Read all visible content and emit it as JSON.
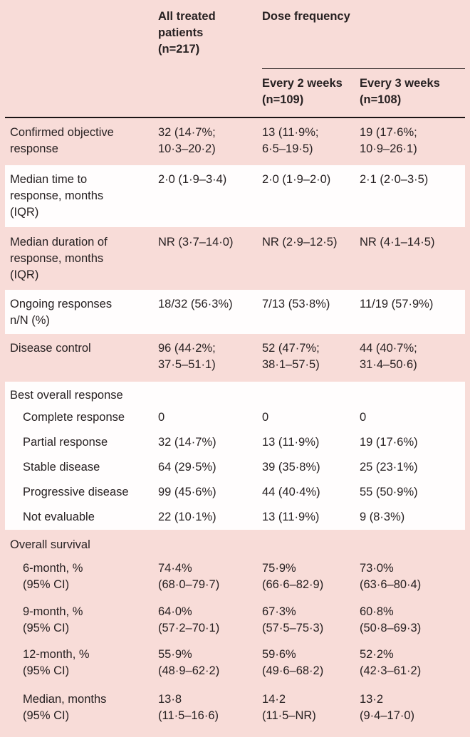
{
  "chart_data": {
    "type": "table",
    "header": {
      "all_treated": "All treated\npatients\n(n=217)",
      "dose_frequency_group": "Dose frequency",
      "every_2_weeks": "Every 2 weeks\n(n=109)",
      "every_3_weeks": "Every 3 weeks\n(n=108)"
    },
    "rows": [
      {
        "label": "Confirmed objective\nresponse",
        "values": [
          "32 (14·7%;\n10·3–20·2)",
          "13 (11·9%;\n6·5–19·5)",
          "19 (17·6%;\n10·9–26·1)"
        ]
      },
      {
        "label": "Median time to\nresponse, months\n(IQR)",
        "values": [
          "2·0 (1·9–3·4)",
          "2·0 (1·9–2·0)",
          "2·1 (2·0–3·5)"
        ]
      },
      {
        "label": "Median duration of\nresponse, months\n(IQR)",
        "values": [
          "NR (3·7–14·0)",
          "NR (2·9–12·5)",
          "NR (4·1–14·5)"
        ]
      },
      {
        "label": "Ongoing responses\nn/N (%)",
        "values": [
          "18/32 (56·3%)",
          "7/13 (53·8%)",
          "11/19 (57·9%)"
        ]
      },
      {
        "label": "Disease control",
        "values": [
          "96 (44·2%;\n37·5–51·1)",
          "52 (47·7%;\n38·1–57·5)",
          "44 (40·7%;\n31·4–50·6)"
        ]
      }
    ],
    "sections": [
      {
        "title": "Best overall response",
        "rows": [
          {
            "label": "Complete response",
            "values": [
              "0",
              "0",
              "0"
            ]
          },
          {
            "label": "Partial response",
            "values": [
              "32 (14·7%)",
              "13 (11·9%)",
              "19 (17·6%)"
            ]
          },
          {
            "label": "Stable disease",
            "values": [
              "64 (29·5%)",
              "39 (35·8%)",
              "25 (23·1%)"
            ]
          },
          {
            "label": "Progressive disease",
            "values": [
              "99 (45·6%)",
              "44 (40·4%)",
              "55 (50·9%)"
            ]
          },
          {
            "label": "Not evaluable",
            "values": [
              "22 (10·1%)",
              "13 (11·9%)",
              "9 (8·3%)"
            ]
          }
        ]
      },
      {
        "title": "Overall survival",
        "rows": [
          {
            "label": "6-month, %\n(95% CI)",
            "values": [
              "74·4%\n(68·0–79·7)",
              "75·9%\n(66·6–82·9)",
              "73·0%\n(63·6–80·4)"
            ]
          },
          {
            "label": "9-month, %\n(95% CI)",
            "values": [
              "64·0%\n(57·2–70·1)",
              "67·3%\n(57·5–75·3)",
              "60·8%\n(50·8–69·3)"
            ]
          },
          {
            "label": "12-month, %\n(95% CI)",
            "values": [
              "55·9%\n(48·9–62·2)",
              "59·6%\n(49·6–68·2)",
              "52·2%\n(42·3–61·2)"
            ]
          },
          {
            "label": "Median, months\n(95% CI)",
            "values": [
              "13·8\n(11·5–16·6)",
              "14·2\n(11·5–NR)",
              "13·2\n(9·4–17·0)"
            ]
          }
        ]
      }
    ],
    "colors": {
      "background_pink": "#f8dcd8",
      "row_white": "#fffdfd",
      "text": "#272122",
      "rule": "#1b1415"
    }
  }
}
